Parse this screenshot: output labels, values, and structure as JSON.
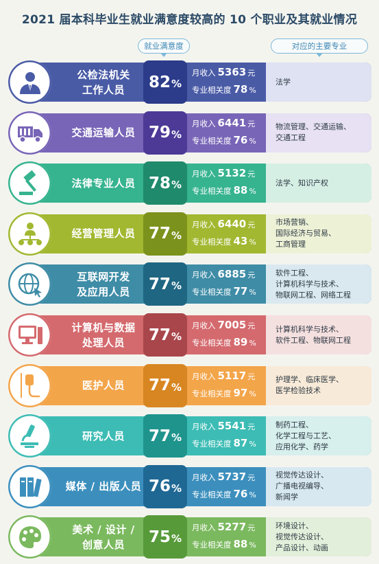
{
  "title": "2021 届本科毕业生就业满意度较高的 10 个职业及其就业情况",
  "headers": {
    "satisfaction": "就业满意度",
    "majors": "对应的主要专业"
  },
  "labels": {
    "income": "月收入",
    "income_unit": "元",
    "relevance": "专业相关度",
    "percent": "%"
  },
  "chart_data": {
    "type": "table",
    "columns": [
      "职业",
      "就业满意度",
      "月收入",
      "专业相关度",
      "对应的主要专业"
    ],
    "rows": [
      {
        "job": "公检法机关\n工作人员",
        "satisfaction": 82,
        "income": 5363,
        "relevance": 78,
        "majors": "法学",
        "icon": "person-suit-icon",
        "colors": {
          "bar": "#4a5ba6",
          "sat": "#2c3c8a",
          "circle": "#4a5ba6",
          "maj": "#dfe2f2"
        }
      },
      {
        "job": "交通运输人员",
        "satisfaction": 79,
        "income": 6441,
        "relevance": 76,
        "majors": "物流管理、交通运输、\n交通工程",
        "icon": "truck-icon",
        "colors": {
          "bar": "#7865b7",
          "sat": "#4c3a96",
          "circle": "#7865b7",
          "maj": "#e7e1f3"
        }
      },
      {
        "job": "法律专业人员",
        "satisfaction": 78,
        "income": 5132,
        "relevance": 88,
        "majors": "法学、知识产权",
        "icon": "gavel-icon",
        "colors": {
          "bar": "#36b38f",
          "sat": "#1f8a6c",
          "circle": "#36b38f",
          "maj": "#d6efe5"
        }
      },
      {
        "job": "经营管理人员",
        "satisfaction": 77,
        "income": 6440,
        "relevance": 43,
        "majors": "市场营销、\n国际经济与贸易、\n工商管理",
        "icon": "network-person-icon",
        "colors": {
          "bar": "#a2b831",
          "sat": "#7b921d",
          "circle": "#a2b831",
          "maj": "#edf1d6"
        }
      },
      {
        "job": "互联网开发\n及应用人员",
        "satisfaction": 77,
        "income": 6885,
        "relevance": 77,
        "majors": "软件工程、\n计算机科学与技术、\n物联网工程、网络工程",
        "icon": "globe-cursor-icon",
        "colors": {
          "bar": "#3e8ca6",
          "sat": "#1f6682",
          "circle": "#3e8ca6",
          "maj": "#d9e9ef"
        }
      },
      {
        "job": "计算机与数据\n处理人员",
        "satisfaction": 77,
        "income": 7005,
        "relevance": 89,
        "majors": "计算机科学与技术、\n软件工程、物联网工程",
        "icon": "computer-icon",
        "colors": {
          "bar": "#d46a6e",
          "sat": "#a9464b",
          "circle": "#d46a6e",
          "maj": "#f5e0e0"
        }
      },
      {
        "job": "医护人员",
        "satisfaction": 77,
        "income": 5117,
        "relevance": 97,
        "majors": "护理学、临床医学、\n医学检验技术",
        "icon": "iv-drip-icon",
        "colors": {
          "bar": "#f3a54a",
          "sat": "#d88622",
          "circle": "#f3a54a",
          "maj": "#f8ead8"
        }
      },
      {
        "job": "研究人员",
        "satisfaction": 77,
        "income": 5541,
        "relevance": 87,
        "majors": "制药工程、\n化学工程与工艺、\n应用化学、药学",
        "icon": "microscope-icon",
        "colors": {
          "bar": "#3cbcb4",
          "sat": "#1f948d",
          "circle": "#3cbcb4",
          "maj": "#d7efed"
        }
      },
      {
        "job": "媒体 / 出版人员",
        "satisfaction": 76,
        "income": 5737,
        "relevance": 76,
        "majors": "视觉传达设计、\n广播电视编导、\n新闻学",
        "icon": "books-icon",
        "colors": {
          "bar": "#3c8fbd",
          "sat": "#1f6893",
          "circle": "#3c8fbd",
          "maj": "#d8e8f1"
        }
      },
      {
        "job": "美术 / 设计 /\n创意人员",
        "satisfaction": 75,
        "income": 5277,
        "relevance": 88,
        "majors": "环境设计、\n视觉传达设计、\n产品设计、动画",
        "icon": "palette-icon",
        "colors": {
          "bar": "#7bb95f",
          "sat": "#579a3a",
          "circle": "#7bb95f",
          "maj": "#e2efda"
        }
      }
    ]
  }
}
